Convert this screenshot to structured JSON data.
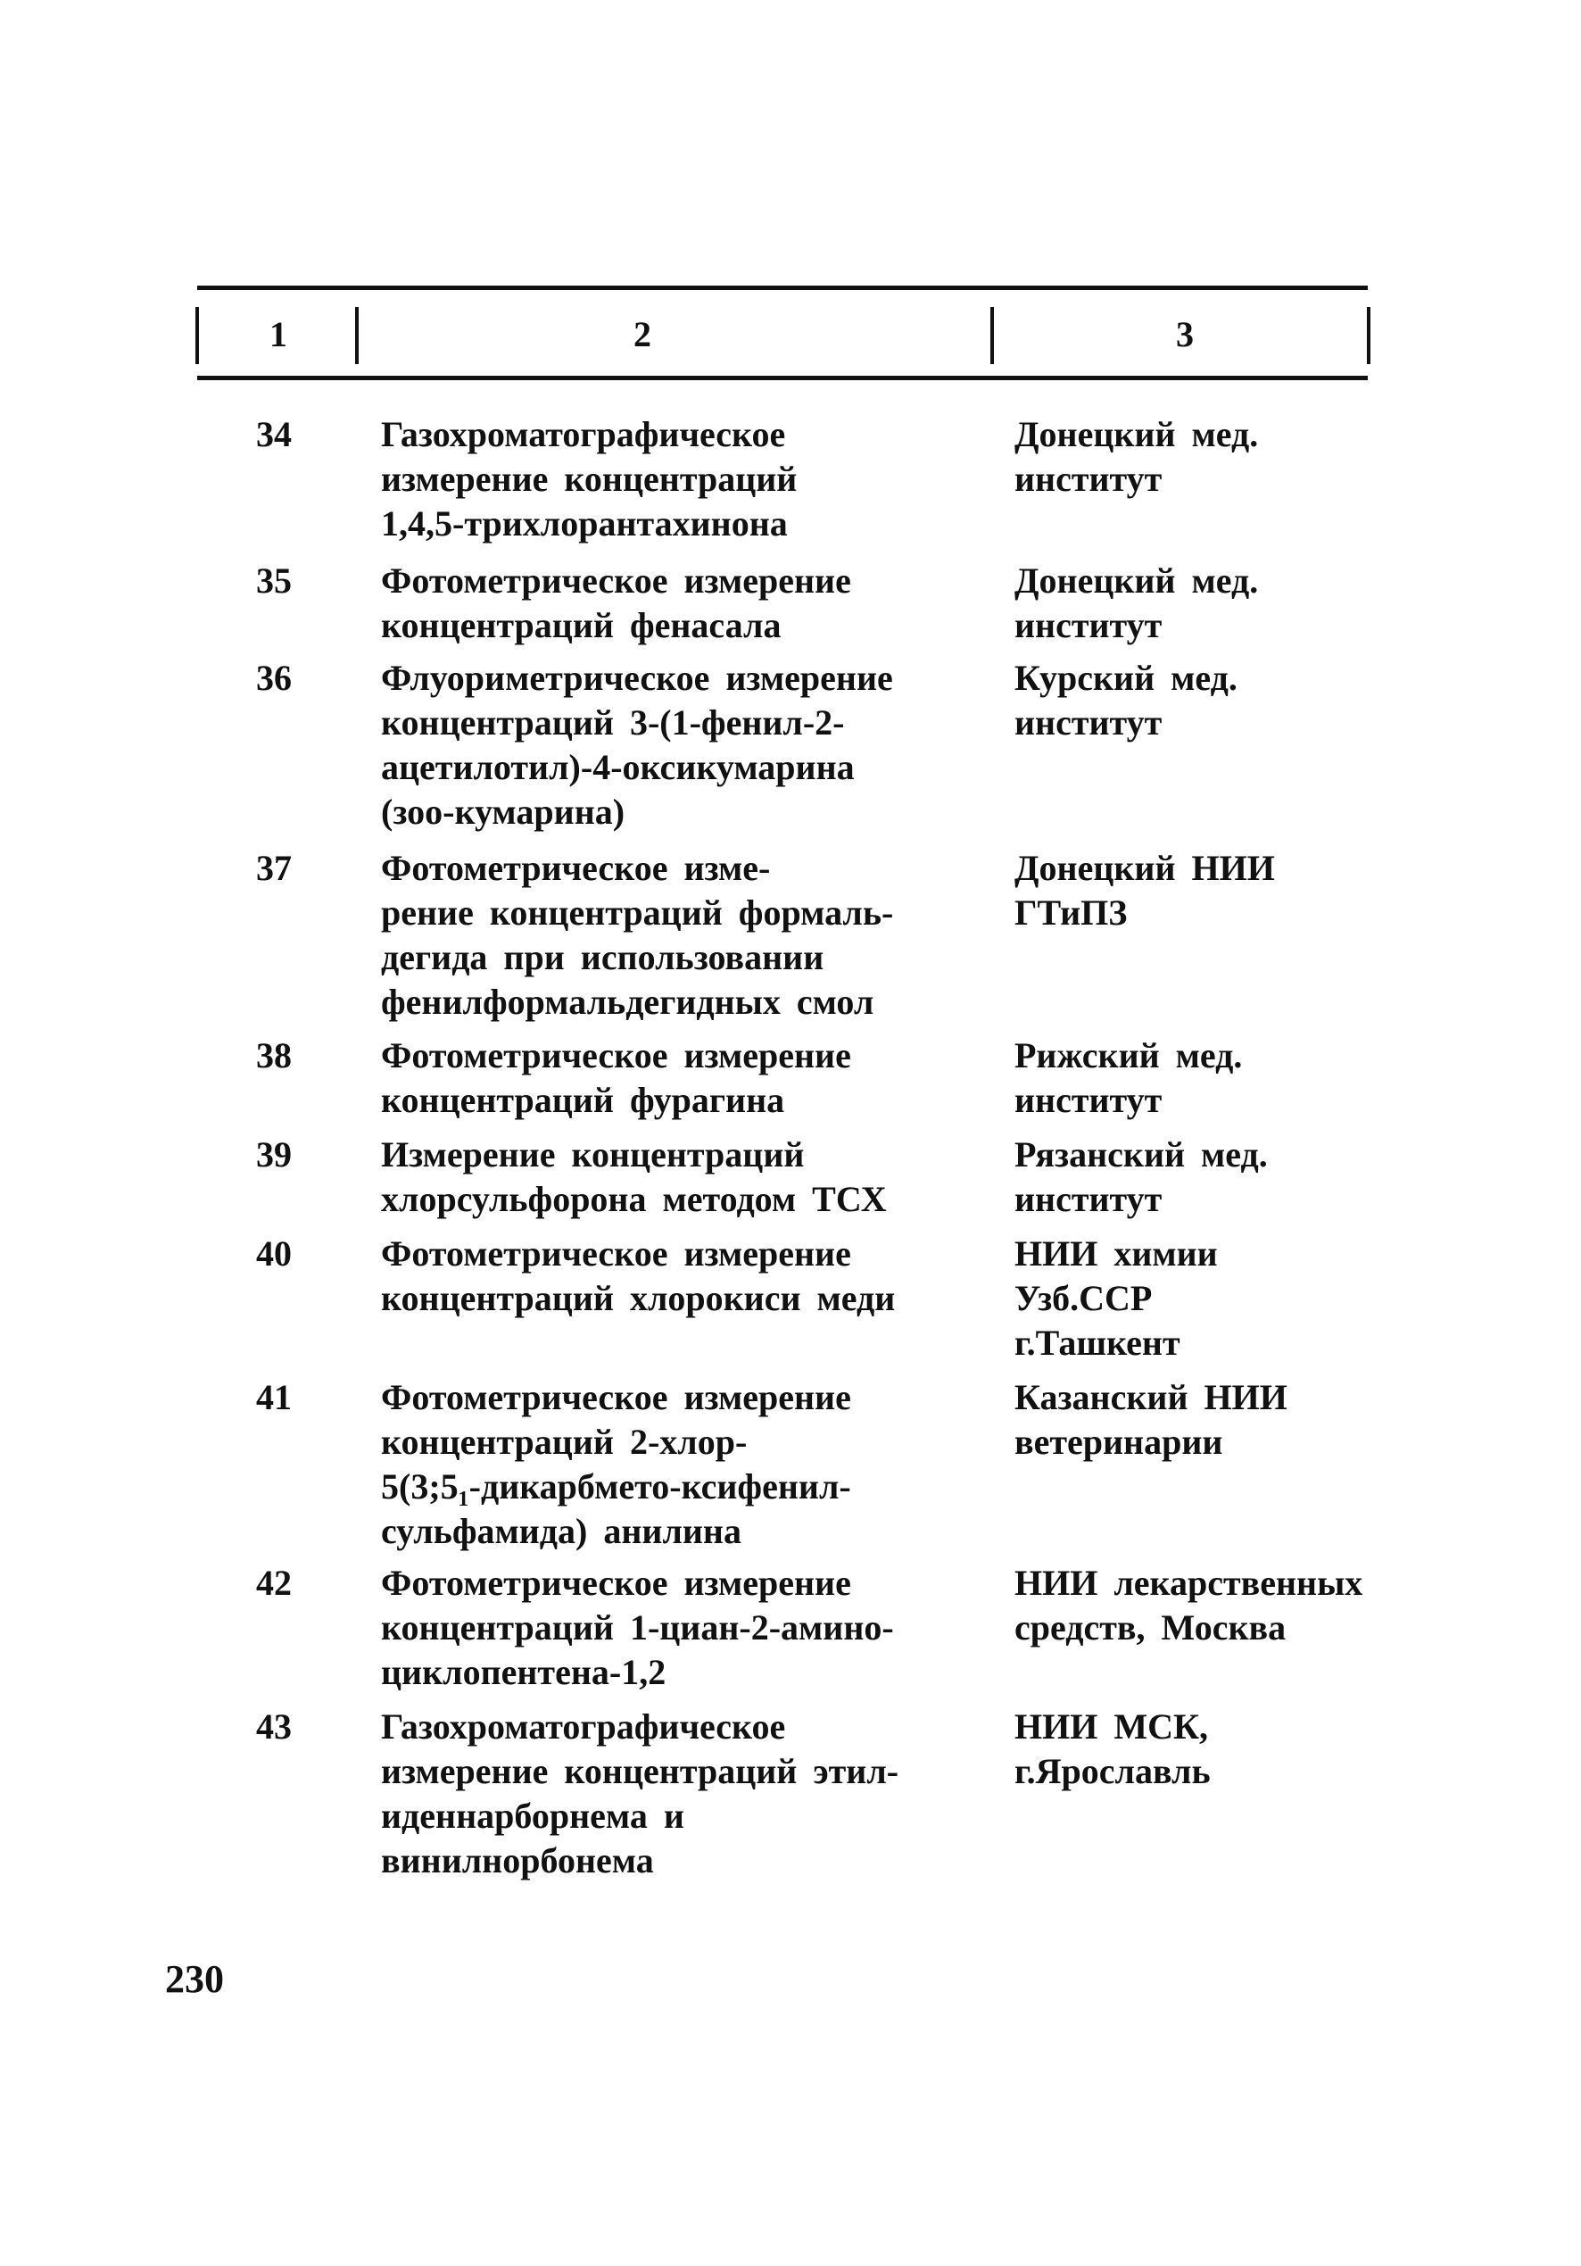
{
  "table": {
    "header": [
      "1",
      "2",
      "3"
    ],
    "rows": [
      {
        "num": "34",
        "desc": [
          "Газохроматографическое",
          "измерение концентраций",
          "1,4,5-трихлорантахинона"
        ],
        "org": [
          "Донецкий мед.",
          "институт"
        ]
      },
      {
        "num": "35",
        "desc": [
          "Фотометрическое измерение",
          "концентраций фенасала"
        ],
        "org": [
          "Донецкий мед.",
          "институт"
        ]
      },
      {
        "num": "36",
        "desc": [
          "Флуориметрическое измерение",
          "концентраций 3-(1-фенил-2-",
          "ацетилотил)-4-оксикумарина",
          "(зоо-кумарина)"
        ],
        "org": [
          "Курский мед.",
          "институт"
        ]
      },
      {
        "num": "37",
        "desc": [
          "Фотометрическое изме-",
          "рение концентраций формаль-",
          "дегида при использовании",
          "фенилформальдегидных смол"
        ],
        "org": [
          "Донецкий НИИ",
          "ГТиПЗ"
        ]
      },
      {
        "num": "38",
        "desc": [
          "Фотометрическое измерение",
          "концентраций фурагина"
        ],
        "org": [
          "Рижский мед.",
          "институт"
        ]
      },
      {
        "num": "39",
        "desc": [
          "Измерение концентраций",
          "хлорсульфорона методом ТСХ"
        ],
        "org": [
          "Рязанский мед.",
          "институт"
        ]
      },
      {
        "num": "40",
        "desc": [
          "Фотометрическое измерение",
          "концентраций хлорокиси меди"
        ],
        "org": [
          "НИИ химии",
          "Узб.ССР",
          "г.Ташкент"
        ]
      },
      {
        "num": "41",
        "desc": [
          "Фотометрическое измерение",
          "концентраций 2-хлор-",
          "5(3;5₁-дикарбмето-ксифенил-",
          "сульфамида) анилина"
        ],
        "org": [
          "Казанский НИИ",
          "ветеринарии"
        ]
      },
      {
        "num": "42",
        "desc": [
          "Фотометрическое измерение",
          "концентраций 1-циан-2-амино-",
          "циклопентена-1,2"
        ],
        "org": [
          "НИИ лекарственных",
          "средств, Москва"
        ]
      },
      {
        "num": "43",
        "desc": [
          "Газохроматографическое",
          "измерение концентраций этил-",
          "иденнарборнема и",
          "винилнорбонема"
        ],
        "org": [
          "НИИ МСК,",
          "г.Ярославль"
        ]
      }
    ]
  },
  "page_number": "230"
}
